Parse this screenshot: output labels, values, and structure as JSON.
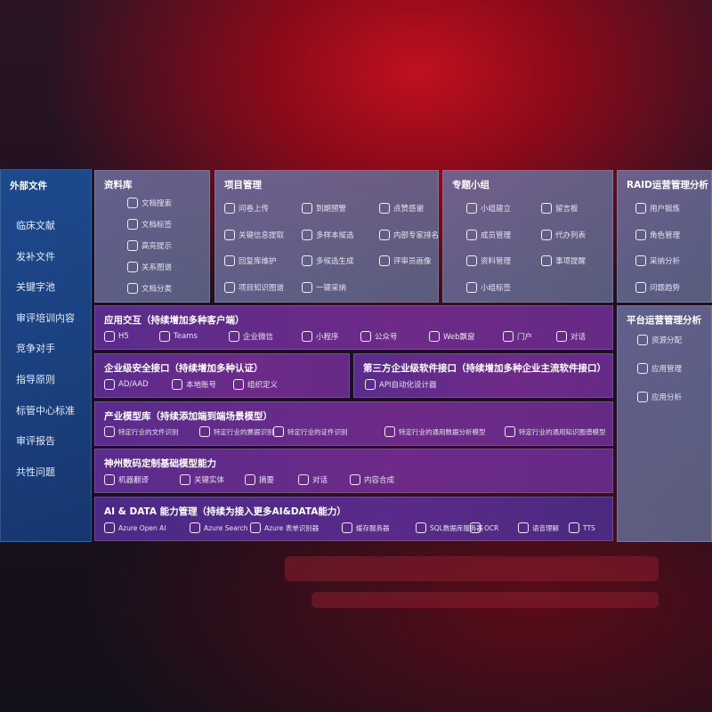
{
  "sidebar": {
    "title": "外部文件",
    "items": [
      "临床文献",
      "发补文件",
      "关键字池",
      "审评培训内容",
      "竞争对手",
      "指导原则",
      "标管中心标准",
      "审评报告",
      "共性问题"
    ]
  },
  "library": {
    "title": "资料库",
    "items": [
      {
        "label": "文档搜索",
        "icon": "doc-search-icon"
      },
      {
        "label": "文档标签",
        "icon": "tag-icon"
      },
      {
        "label": "高亮提示",
        "icon": "pen-icon"
      },
      {
        "label": "关系图谱",
        "icon": "graph-icon"
      },
      {
        "label": "文档分类",
        "icon": "doc-category-icon"
      }
    ]
  },
  "project": {
    "title": "项目管理",
    "items": [
      {
        "label": "问卷上传",
        "icon": "cloud-upload-icon"
      },
      {
        "label": "到期预警",
        "icon": "alarm-icon"
      },
      {
        "label": "点赞感谢",
        "icon": "thumbs-up-icon"
      },
      {
        "label": "关键信息提取",
        "icon": "extract-icon"
      },
      {
        "label": "多样本候选",
        "icon": "reply-icon"
      },
      {
        "label": "内部专家排名",
        "icon": "ranking-icon"
      },
      {
        "label": "回复库维护",
        "icon": "edit-icon"
      },
      {
        "label": "多候选生成",
        "icon": "puzzle-icon"
      },
      {
        "label": "评审员画像",
        "icon": "person-icon"
      },
      {
        "label": "项目知识图谱",
        "icon": "graph-icon"
      },
      {
        "label": "一键采纳",
        "icon": "reply-icon"
      }
    ]
  },
  "group": {
    "title": "专题小组",
    "items": [
      {
        "label": "小组建立",
        "icon": "group-icon"
      },
      {
        "label": "留言板",
        "icon": "bbs-icon"
      },
      {
        "label": "成员管理",
        "icon": "user-add-icon"
      },
      {
        "label": "代办列表",
        "icon": "clipboard-icon"
      },
      {
        "label": "资料管理",
        "icon": "folder-icon"
      },
      {
        "label": "事项提醒",
        "icon": "bell-icon"
      },
      {
        "label": "小组标签",
        "icon": "tag-icon"
      }
    ]
  },
  "raid": {
    "title": "RAID运营管理分析",
    "items": [
      {
        "label": "用户锻炼",
        "icon": "id-card-icon"
      },
      {
        "label": "角色管理",
        "icon": "users-icon"
      },
      {
        "label": "采纳分析",
        "icon": "qa-icon"
      },
      {
        "label": "问题趋势",
        "icon": "trend-icon"
      }
    ]
  },
  "platform": {
    "title": "平台运营管理分析",
    "items": [
      {
        "label": "资源分配",
        "icon": "checklist-icon"
      },
      {
        "label": "应用管理",
        "icon": "apps-icon"
      },
      {
        "label": "应用分析",
        "icon": "analysis-icon"
      }
    ]
  },
  "app": {
    "title": "应用交互（持续增加多种客户端）",
    "items": [
      {
        "label": "H5",
        "icon": "html5-icon"
      },
      {
        "label": "Teams",
        "icon": "teams-icon"
      },
      {
        "label": "企业微信",
        "icon": "wecom-icon"
      },
      {
        "label": "小程序",
        "icon": "miniprogram-icon"
      },
      {
        "label": "公众号",
        "icon": "official-account-icon"
      },
      {
        "label": "Web飘窗",
        "icon": "window-icon"
      },
      {
        "label": "门户",
        "icon": "portal-icon"
      },
      {
        "label": "对话",
        "icon": "chat-icon"
      }
    ]
  },
  "security": {
    "title": "企业级安全接口（持续增加多种认证）",
    "items": [
      {
        "label": "AD/AAD",
        "icon": "ad-icon"
      },
      {
        "label": "本地账号",
        "icon": "account-icon"
      },
      {
        "label": "组织定义",
        "icon": "org-icon"
      }
    ]
  },
  "thirdparty": {
    "title": "第三方企业级软件接口（持续增加多种企业主流软件接口）",
    "items": [
      {
        "label": "API自动化设计器",
        "icon": "gear-icon"
      }
    ]
  },
  "industry": {
    "title": "产业模型库（持续添加端到端场景模型）",
    "items": [
      {
        "label": "特定行业的文件识别",
        "icon": "file-icon"
      },
      {
        "label": "特定行业的票据识别",
        "icon": "receipt-icon"
      },
      {
        "label": "特定行业的证件识别",
        "icon": "id-card-icon"
      },
      {
        "label": "特定行业的通用数据分析模型",
        "icon": "chart-icon"
      },
      {
        "label": "特定行业的通用知识图谱模型",
        "icon": "graph-icon"
      }
    ]
  },
  "base": {
    "title": "神州数码定制基础模型能力",
    "items": [
      {
        "label": "机器翻译",
        "icon": "translate-icon"
      },
      {
        "label": "关键实体",
        "icon": "entity-icon"
      },
      {
        "label": "摘要",
        "icon": "summary-icon"
      },
      {
        "label": "对话",
        "icon": "chat-icon"
      },
      {
        "label": "内容合成",
        "icon": "puzzle-icon"
      }
    ]
  },
  "ai": {
    "title": "AI & DATA 能力管理（持续为接入更多AI&DATA能力）",
    "items": [
      {
        "label": "Azure Open AI",
        "icon": "openai-icon"
      },
      {
        "label": "Azure Search",
        "icon": "search-icon"
      },
      {
        "label": "Azure 表单识别器",
        "icon": "form-icon"
      },
      {
        "label": "缓存服务器",
        "icon": "server-icon"
      },
      {
        "label": "SQL数据库服务器",
        "icon": "database-icon"
      },
      {
        "label": "OCR",
        "icon": "ocr-icon"
      },
      {
        "label": "语音理解",
        "icon": "speech-icon"
      },
      {
        "label": "TTS",
        "icon": "tts-icon"
      }
    ]
  }
}
